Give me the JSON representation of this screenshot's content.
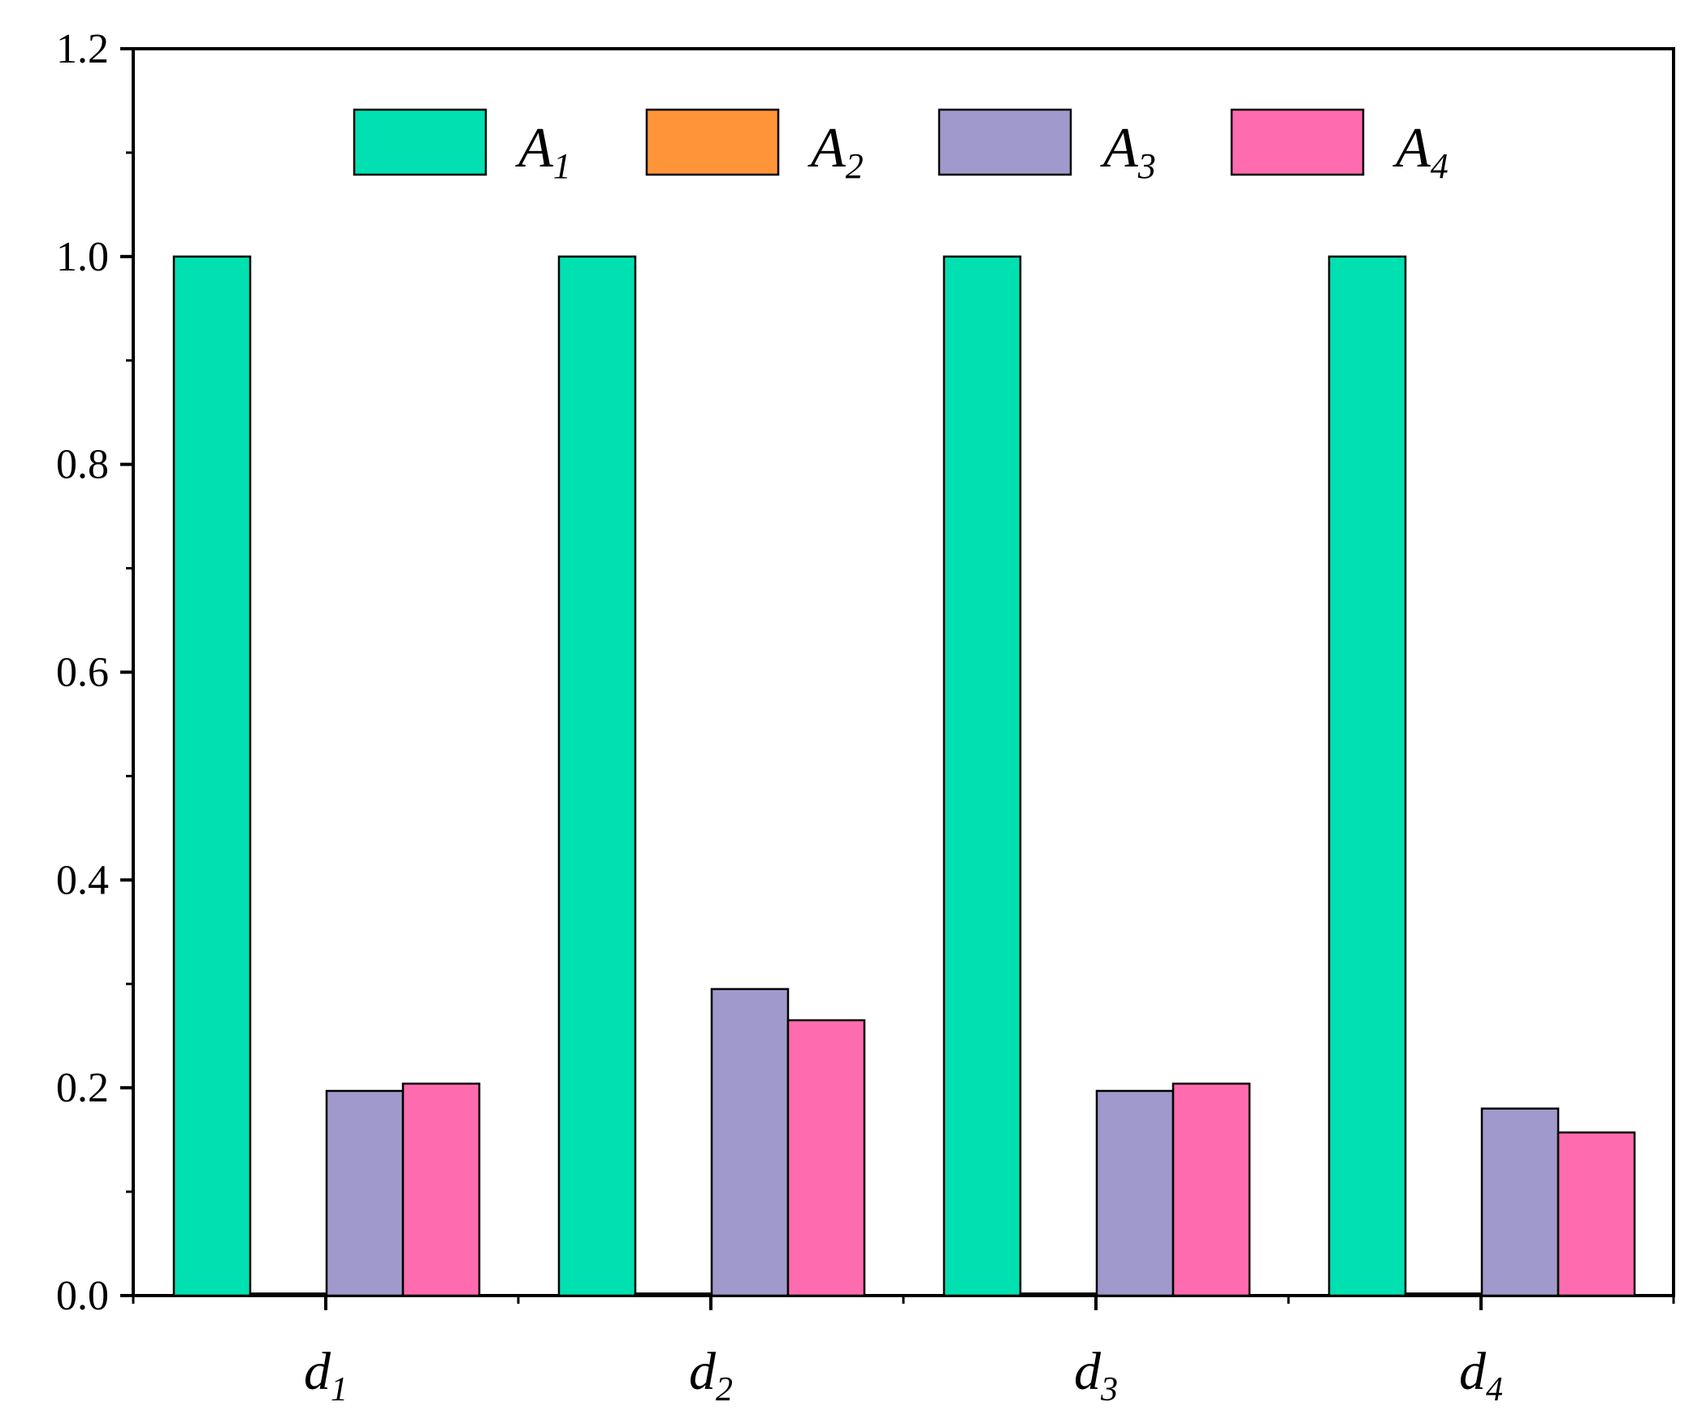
{
  "chart_data": {
    "type": "bar",
    "categories": [
      {
        "symbol": "d",
        "sub": "1"
      },
      {
        "symbol": "d",
        "sub": "2"
      },
      {
        "symbol": "d",
        "sub": "3"
      },
      {
        "symbol": "d",
        "sub": "4"
      }
    ],
    "series": [
      {
        "name": "A",
        "sub": "1",
        "color": "#00E0B0",
        "values": [
          1.0,
          1.0,
          1.0,
          1.0
        ]
      },
      {
        "name": "A",
        "sub": "2",
        "color": "#FF9438",
        "values": [
          0.002,
          0.002,
          0.002,
          0.002
        ]
      },
      {
        "name": "A",
        "sub": "3",
        "color": "#A09ACC",
        "values": [
          0.197,
          0.295,
          0.197,
          0.18
        ]
      },
      {
        "name": "A",
        "sub": "4",
        "color": "#FF6BAF",
        "values": [
          0.204,
          0.265,
          0.204,
          0.157
        ]
      }
    ],
    "ylim": [
      0,
      1.2
    ],
    "yticks": [
      "0.0",
      "0.2",
      "0.4",
      "0.6",
      "0.8",
      "1.0",
      "1.2"
    ],
    "legend": "top-center",
    "grid": false,
    "title": "",
    "xlabel": "",
    "ylabel": ""
  }
}
